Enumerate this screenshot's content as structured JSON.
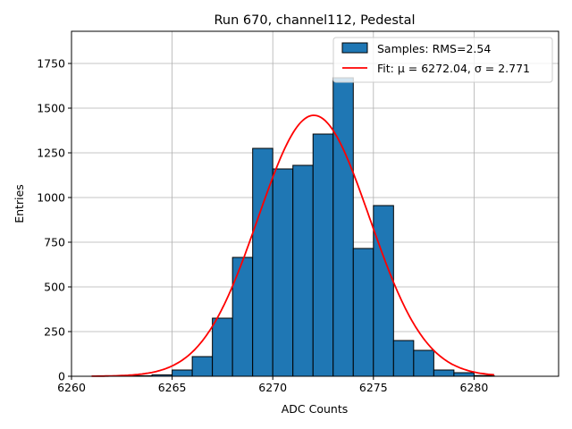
{
  "chart_data": {
    "type": "bar",
    "title": "Run 670, channel112, Pedestal",
    "xlabel": "ADC Counts",
    "ylabel": "Entries",
    "xlim": [
      6260,
      6284.2
    ],
    "ylim": [
      0,
      1930
    ],
    "grid": true,
    "legend_placement": "top-right",
    "xticks": [
      "6260",
      "6265",
      "6270",
      "6275",
      "6280"
    ],
    "yticks": [
      "0",
      "250",
      "500",
      "750",
      "1000",
      "1250",
      "1500",
      "1750"
    ],
    "bin_edges_start": 6261,
    "bin_width": 1,
    "values": [
      0,
      0,
      3,
      8,
      35,
      110,
      325,
      665,
      1275,
      1160,
      1180,
      1355,
      1670,
      715,
      955,
      200,
      145,
      35,
      20,
      4
    ],
    "series": [
      {
        "name": "Samples: RMS=2.54",
        "type": "hist",
        "color": "#1f77b4"
      },
      {
        "name": "Fit",
        "type": "line",
        "color": "#ff0000",
        "mu": 6272.04,
        "sigma": 2.771,
        "amplitude": 1460,
        "range": [
          6261,
          6281
        ]
      }
    ],
    "legend": [
      "Samples: RMS=2.54",
      "Fit: μ = 6272.04, σ = 2.771"
    ]
  }
}
